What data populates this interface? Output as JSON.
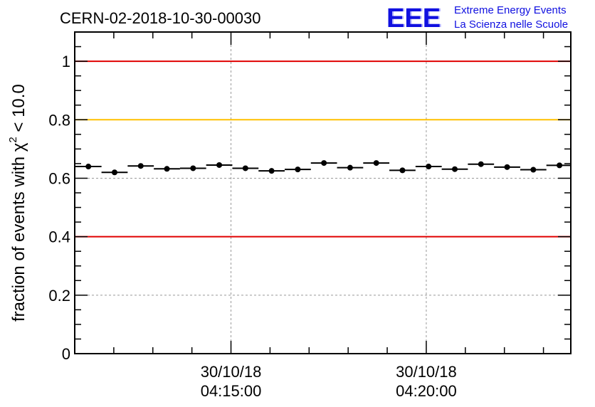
{
  "chart_data": {
    "type": "scatter",
    "title": "CERN-02-2018-10-30-00030",
    "ylabel": "fraction of events with χ² < 10.0",
    "ylabel_parts": {
      "prefix": "fraction of events with ",
      "symbol": "χ",
      "superscript": "2",
      "suffix": " < 10.0"
    },
    "xlabel": "",
    "x_start_min": 0.0,
    "x_end_min": 12.7,
    "ylim": [
      0,
      1.1
    ],
    "y_ticks": [
      {
        "value": 0,
        "label": "0"
      },
      {
        "value": 0.2,
        "label": "0.2"
      },
      {
        "value": 0.4,
        "label": "0.4"
      },
      {
        "value": 0.6,
        "label": "0.6"
      },
      {
        "value": 0.8,
        "label": "0.8"
      },
      {
        "value": 1.0,
        "label": "1"
      }
    ],
    "x_major_ticks": [
      {
        "minute": 4.0,
        "date": "30/10/18",
        "time": "04:15:00"
      },
      {
        "minute": 9.0,
        "date": "30/10/18",
        "time": "04:20:00"
      }
    ],
    "reference_lines": [
      {
        "y": 1.0,
        "color": "#e00000"
      },
      {
        "y": 0.8,
        "color": "#ffc000"
      },
      {
        "y": 0.4,
        "color": "#e00000"
      }
    ],
    "grid": true,
    "bin_width_min": 0.67,
    "series": [
      {
        "name": "fraction",
        "x": [
          0.35,
          1.02,
          1.69,
          2.36,
          3.03,
          3.7,
          4.37,
          5.04,
          5.71,
          6.38,
          7.05,
          7.72,
          8.39,
          9.06,
          9.73,
          10.4,
          11.07,
          11.74,
          12.41
        ],
        "y": [
          0.64,
          0.62,
          0.642,
          0.632,
          0.634,
          0.645,
          0.634,
          0.625,
          0.63,
          0.652,
          0.636,
          0.652,
          0.627,
          0.64,
          0.631,
          0.648,
          0.638,
          0.629,
          0.644
        ]
      }
    ]
  },
  "logo": {
    "mark": "EEE",
    "line1": "Extreme Energy Events",
    "line2": "La Scienza nelle Scuole",
    "color": "#1010e0"
  }
}
